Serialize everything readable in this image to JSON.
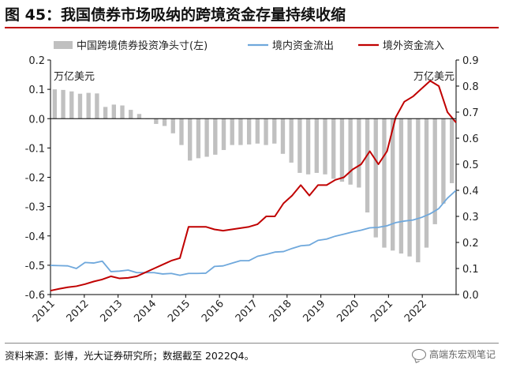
{
  "figure": {
    "title": "图 45：我国债券市场吸纳的跨境资金存量持续收缩",
    "source": "资料来源：彭博，光大证券研究所；数据截至 2022Q4。",
    "watermark": "高端东宏观笔记"
  },
  "chart_data": {
    "type": "bar+line",
    "x_ticks": [
      "2011",
      "2012",
      "2013",
      "2014",
      "2015",
      "2016",
      "2017",
      "2018",
      "2019",
      "2020",
      "2021",
      "2022"
    ],
    "left_axis": {
      "range": [
        -0.6,
        0.2
      ],
      "ticks": [
        "0.2",
        "0.1",
        "0.0",
        "-0.1",
        "-0.2",
        "-0.3",
        "-0.4",
        "-0.5",
        "-0.6"
      ],
      "unit_label": "万亿美元"
    },
    "right_axis": {
      "range": [
        0.0,
        0.9
      ],
      "ticks": [
        "0.9",
        "0.8",
        "0.7",
        "0.6",
        "0.5",
        "0.4",
        "0.3",
        "0.2",
        "0.1",
        "0.0"
      ],
      "unit_label": "万亿美元"
    },
    "legend": [
      "中国跨境债券投资净头寸(左)",
      "境内资金流出",
      "境外资金流入"
    ],
    "colors": {
      "bar": "#c0c0c0",
      "outflow": "#6fa8dc",
      "inflow": "#c00000"
    },
    "bar_series": {
      "name": "中国跨境债券投资净头寸(左)",
      "axis": "left",
      "values": [
        0.1,
        0.098,
        0.093,
        0.085,
        0.088,
        0.086,
        0.04,
        0.048,
        0.045,
        0.03,
        0.016,
        0.0,
        -0.018,
        -0.025,
        -0.05,
        -0.09,
        -0.143,
        -0.135,
        -0.13,
        -0.123,
        -0.107,
        -0.09,
        -0.09,
        -0.088,
        -0.085,
        -0.09,
        -0.085,
        -0.12,
        -0.15,
        -0.185,
        -0.19,
        -0.185,
        -0.19,
        -0.205,
        -0.215,
        -0.225,
        -0.235,
        -0.32,
        -0.405,
        -0.44,
        -0.45,
        -0.46,
        -0.47,
        -0.49,
        -0.44,
        -0.36,
        -0.29,
        -0.22
      ]
    },
    "line_series": [
      {
        "name": "境内资金流出",
        "axis": "right",
        "values": [
          0.112,
          0.111,
          0.11,
          0.1,
          0.123,
          0.121,
          0.128,
          0.088,
          0.09,
          0.094,
          0.084,
          0.084,
          0.084,
          0.079,
          0.081,
          0.074,
          0.081,
          0.081,
          0.082,
          0.108,
          0.11,
          0.12,
          0.13,
          0.13,
          0.147,
          0.154,
          0.163,
          0.165,
          0.177,
          0.187,
          0.19,
          0.208,
          0.213,
          0.224,
          0.232,
          0.24,
          0.247,
          0.256,
          0.258,
          0.264,
          0.276,
          0.282,
          0.286,
          0.296,
          0.31,
          0.33,
          0.37,
          0.4
        ]
      },
      {
        "name": "境外资金流入",
        "axis": "right",
        "values": [
          0.015,
          0.022,
          0.028,
          0.032,
          0.04,
          0.05,
          0.058,
          0.07,
          0.062,
          0.064,
          0.07,
          0.085,
          0.1,
          0.115,
          0.13,
          0.14,
          0.26,
          0.26,
          0.26,
          0.25,
          0.245,
          0.25,
          0.255,
          0.26,
          0.27,
          0.3,
          0.3,
          0.35,
          0.38,
          0.42,
          0.38,
          0.42,
          0.42,
          0.44,
          0.45,
          0.48,
          0.5,
          0.55,
          0.5,
          0.55,
          0.68,
          0.74,
          0.76,
          0.79,
          0.82,
          0.8,
          0.7,
          0.66
        ]
      }
    ]
  }
}
